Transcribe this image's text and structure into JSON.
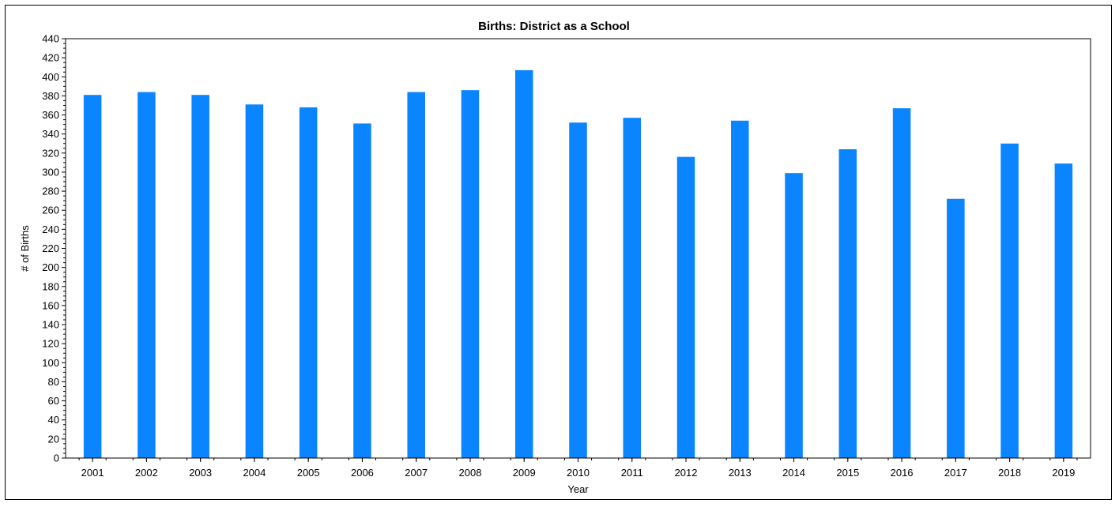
{
  "chart_data": {
    "type": "bar",
    "title": "Births: District as a School",
    "xlabel": "Year",
    "ylabel": "# of Births",
    "categories": [
      "2001",
      "2002",
      "2003",
      "2004",
      "2005",
      "2006",
      "2007",
      "2008",
      "2009",
      "2010",
      "2011",
      "2012",
      "2013",
      "2014",
      "2015",
      "2016",
      "2017",
      "2018",
      "2019"
    ],
    "values": [
      381,
      384,
      381,
      371,
      368,
      351,
      384,
      386,
      407,
      352,
      357,
      316,
      354,
      299,
      324,
      367,
      272,
      330,
      309
    ],
    "ylim": [
      0,
      440
    ],
    "ytick_step": 20,
    "grid": false,
    "legend": "none",
    "bar_color": "#0a84ff"
  }
}
